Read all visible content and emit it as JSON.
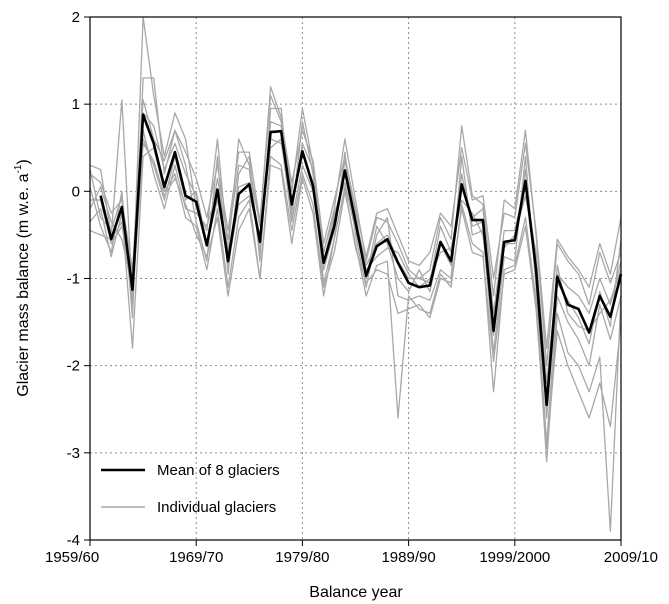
{
  "chart_data": {
    "type": "line",
    "title": "",
    "xlabel": "Balance year",
    "ylabel": "Glacier mass balance (m w.e. a",
    "ylabel_superscript": "-1",
    "ylabel_close": ")",
    "ylim": [
      -4,
      2
    ],
    "xlim": [
      1960,
      2010
    ],
    "grid": true,
    "legend_position": "bottom-left",
    "x_tick_labels": [
      "1959/60",
      "1969/70",
      "1979/80",
      "1989/90",
      "1999/2000",
      "2009/10"
    ],
    "y_tick_labels": [
      "2",
      "1",
      "0",
      "-1",
      "-2",
      "-3",
      "-4"
    ],
    "colors": {
      "mean": "#000000",
      "individual": "#a8a8a8",
      "grid": "#8c8c8c"
    },
    "series": [
      {
        "name": "Mean of 8 glaciers",
        "x": [
          1961,
          1962,
          1963,
          1964,
          1965,
          1966,
          1967,
          1968,
          1969,
          1970,
          1971,
          1972,
          1973,
          1974,
          1975,
          1976,
          1977,
          1978,
          1979,
          1980,
          1981,
          1982,
          1983,
          1984,
          1985,
          1986,
          1987,
          1988,
          1989,
          1990,
          1991,
          1992,
          1993,
          1994,
          1995,
          1996,
          1997,
          1998,
          1999,
          2000,
          2001,
          2002,
          2003,
          2004,
          2005,
          2006,
          2007,
          2008,
          2009,
          2010
        ],
        "values": [
          -0.05,
          -0.55,
          -0.18,
          -1.13,
          0.88,
          0.55,
          0.05,
          0.45,
          -0.05,
          -0.12,
          -0.62,
          0.02,
          -0.8,
          -0.03,
          0.08,
          -0.58,
          0.68,
          0.69,
          -0.15,
          0.46,
          0.06,
          -0.82,
          -0.4,
          0.24,
          -0.35,
          -0.97,
          -0.63,
          -0.55,
          -0.82,
          -1.05,
          -1.1,
          -1.08,
          -0.58,
          -0.8,
          0.08,
          -0.33,
          -0.33,
          -1.6,
          -0.58,
          -0.56,
          0.12,
          -0.9,
          -2.45,
          -0.98,
          -1.3,
          -1.35,
          -1.62,
          -1.2,
          -1.44,
          -0.95
        ]
      },
      {
        "name": "Individual glaciers",
        "members": [
          {
            "x": [
              1960,
              1961,
              1962,
              1963,
              1964,
              1965,
              1966,
              1967,
              1968,
              1969,
              1970,
              1971,
              1972,
              1973,
              1974,
              1975,
              1976,
              1977,
              1978,
              1979,
              1980,
              1981,
              1982,
              1983,
              1984,
              1985,
              1986,
              1987,
              1988,
              1989,
              1990,
              1991,
              1992,
              1993,
              1994,
              1995,
              1996,
              1997,
              1998,
              1999,
              2000,
              2001,
              2002,
              2003,
              2004,
              2005,
              2006,
              2007,
              2008,
              2009,
              2010
            ],
            "values": [
              0.3,
              0.25,
              -0.5,
              1.05,
              -1.2,
              2.0,
              1.1,
              0.4,
              0.9,
              0.6,
              -0.2,
              -0.45,
              0.6,
              -0.7,
              0.6,
              0.3,
              -0.4,
              1.2,
              0.85,
              0.0,
              0.95,
              0.3,
              -0.7,
              -0.2,
              0.6,
              -0.1,
              -0.8,
              -0.3,
              -0.35,
              -0.6,
              -0.9,
              -1.0,
              -0.9,
              -0.3,
              -0.55,
              0.75,
              -0.05,
              -0.15,
              -1.2,
              -0.1,
              -0.2,
              0.7,
              -0.5,
              -2.0,
              -0.6,
              -0.8,
              -0.95,
              -1.3,
              -0.7,
              -1.05,
              -0.7
            ]
          },
          {
            "x": [
              1960,
              1961,
              1962,
              1963,
              1964,
              1965,
              1966,
              1967,
              1968,
              1969,
              1970,
              1971,
              1972,
              1973,
              1974,
              1975,
              1976,
              1977,
              1978,
              1979,
              1980,
              1981,
              1982,
              1983,
              1984,
              1985,
              1986,
              1987,
              1988,
              1989,
              1990,
              1991,
              1992,
              1993,
              1994,
              1995,
              1996,
              1997,
              1998,
              1999,
              2000,
              2001,
              2002,
              2003,
              2004,
              2005,
              2006,
              2007,
              2008,
              2009,
              2010
            ],
            "values": [
              0.05,
              -0.4,
              -0.7,
              0.0,
              -1.45,
              1.3,
              1.3,
              0.2,
              0.7,
              0.3,
              -0.35,
              -0.8,
              0.4,
              -0.95,
              0.2,
              0.4,
              -0.8,
              0.95,
              0.95,
              -0.3,
              0.8,
              0.2,
              -1.05,
              -0.55,
              0.45,
              -0.5,
              -1.1,
              -0.5,
              -0.3,
              -1.2,
              -1.25,
              -1.2,
              -1.25,
              -0.9,
              -1.0,
              0.4,
              -0.5,
              -0.45,
              -1.85,
              -0.75,
              -0.8,
              0.4,
              -1.1,
              -2.9,
              -1.2,
              -1.5,
              -1.7,
              -2.0,
              -1.3,
              -1.7,
              -1.2
            ]
          },
          {
            "x": [
              1960,
              1961,
              1962,
              1963,
              1964,
              1965,
              1966,
              1967,
              1968,
              1969,
              1970,
              1971,
              1972,
              1973,
              1974,
              1975,
              1976,
              1977,
              1978,
              1979,
              1980,
              1981,
              1982,
              1983,
              1984,
              1985,
              1986,
              1987,
              1988,
              1989,
              1990,
              1991,
              1992,
              1993,
              1994,
              1995,
              1996,
              1997,
              1998,
              1999,
              2000,
              2001,
              2002,
              2003,
              2004,
              2005,
              2006,
              2007,
              2008,
              2009,
              2010
            ],
            "values": [
              -0.1,
              -0.1,
              -0.6,
              -0.4,
              -1.0,
              0.6,
              0.3,
              -0.1,
              0.4,
              -0.1,
              0.0,
              -0.6,
              -0.1,
              -0.75,
              0.05,
              0.1,
              -0.55,
              0.6,
              0.55,
              -0.1,
              0.45,
              0.1,
              -0.8,
              -0.3,
              0.2,
              -0.3,
              -0.85,
              -0.6,
              -0.5,
              -0.8,
              -1.0,
              -1.0,
              -1.05,
              -0.4,
              -0.7,
              0.05,
              -0.3,
              -0.2,
              -1.4,
              -0.45,
              -0.45,
              0.1,
              -0.75,
              -2.2,
              -0.95,
              -1.1,
              -1.2,
              -1.4,
              -1.0,
              -1.3,
              -0.8
            ]
          },
          {
            "x": [
              1960,
              1961,
              1962,
              1963,
              1964,
              1965,
              1966,
              1967,
              1968,
              1969,
              1970,
              1971,
              1972,
              1973,
              1974,
              1975,
              1976,
              1977,
              1978,
              1979,
              1980,
              1981,
              1982,
              1983,
              1984,
              1985,
              1986,
              1987,
              1988,
              1989,
              1990,
              1991,
              1992,
              1993,
              1994,
              1995,
              1996,
              1997,
              1998,
              1999,
              2000,
              2001,
              2002,
              2003,
              2004,
              2005,
              2006,
              2007,
              2008,
              2009,
              2010
            ],
            "values": [
              0.25,
              -0.3,
              -0.45,
              -0.05,
              -1.3,
              0.9,
              0.75,
              0.25,
              0.55,
              0.2,
              -0.05,
              -0.6,
              0.15,
              -0.55,
              0.3,
              0.25,
              -0.7,
              0.8,
              0.75,
              -0.2,
              0.55,
              0.25,
              -0.9,
              -0.45,
              0.35,
              -0.25,
              -1.0,
              -0.4,
              -0.6,
              -1.0,
              -1.15,
              -0.9,
              -1.15,
              -0.6,
              -0.85,
              0.2,
              -0.4,
              -0.35,
              -1.65,
              -0.6,
              -0.6,
              0.25,
              -0.95,
              -2.6,
              -1.05,
              -1.25,
              -1.45,
              -1.75,
              -1.15,
              -1.55,
              -0.55
            ]
          },
          {
            "x": [
              1960,
              1961,
              1962,
              1963,
              1964,
              1965,
              1966,
              1967,
              1968,
              1969,
              1970,
              1971,
              1972,
              1973,
              1974,
              1975,
              1976,
              1977,
              1978,
              1979,
              1980,
              1981,
              1982,
              1983,
              1984,
              1985,
              1986,
              1987,
              1988,
              1989,
              1990,
              1991,
              1992,
              1993,
              1994,
              1995,
              1996,
              1997,
              1998,
              1999,
              2000,
              2001,
              2002,
              2003,
              2004,
              2005,
              2006,
              2007,
              2008,
              2009,
              2010
            ],
            "values": [
              -0.2,
              0.05,
              -0.35,
              -0.55,
              -1.1,
              0.7,
              0.2,
              -0.2,
              0.3,
              -0.2,
              -0.25,
              -0.4,
              0.0,
              -0.85,
              -0.15,
              -0.05,
              -0.5,
              0.5,
              0.6,
              -0.35,
              0.3,
              0.0,
              -0.7,
              -0.25,
              0.1,
              -0.45,
              -0.9,
              -0.75,
              -0.65,
              -0.7,
              -0.95,
              -1.1,
              -1.0,
              -0.7,
              -0.65,
              -0.1,
              -0.25,
              -0.5,
              -1.5,
              -0.65,
              -0.5,
              -0.05,
              -0.7,
              -2.4,
              -0.85,
              -1.4,
              -1.55,
              -1.6,
              -1.4,
              -1.25,
              -0.9
            ]
          },
          {
            "x": [
              1960,
              1961,
              1962,
              1963,
              1964,
              1965,
              1966,
              1967,
              1968,
              1969,
              1970,
              1971,
              1972,
              1973,
              1974,
              1975,
              1976,
              1977,
              1978,
              1979,
              1980,
              1981,
              1982,
              1983,
              1984,
              1985,
              1986,
              1987,
              1988,
              1989,
              1990,
              1991,
              1992,
              1993,
              1994,
              1995,
              1996,
              1997,
              1998,
              1999,
              2000,
              2001,
              2002,
              2003,
              2004,
              2005,
              2006,
              2007,
              2008,
              2009,
              2010
            ],
            "values": [
              -0.35,
              -0.2,
              -0.75,
              -0.25,
              -1.8,
              0.4,
              0.5,
              0.0,
              0.2,
              -0.3,
              -0.4,
              -0.9,
              -0.2,
              -1.1,
              -0.3,
              -0.1,
              -1.0,
              0.4,
              0.3,
              -0.45,
              0.2,
              -0.15,
              -1.1,
              -0.7,
              0.0,
              -0.6,
              -1.2,
              -0.85,
              -0.8,
              -2.6,
              -1.2,
              -1.35,
              -1.4,
              -0.95,
              -1.1,
              -0.15,
              -0.6,
              -0.7,
              -2.3,
              -0.9,
              -0.85,
              -0.3,
              -1.25,
              -3.1,
              -1.4,
              -1.85,
              -2.0,
              -2.3,
              -1.9,
              -3.9,
              -1.2
            ]
          },
          {
            "x": [
              1960,
              1961,
              1962,
              1963,
              1964,
              1965,
              1966,
              1967,
              1968,
              1969,
              1970,
              1971,
              1972,
              1973,
              1974,
              1975,
              1976,
              1977,
              1978,
              1979,
              1980,
              1981,
              1982,
              1983,
              1984,
              1985,
              1986,
              1987,
              1988,
              1989,
              1990,
              1991,
              1992,
              1993,
              1994,
              1995,
              1996,
              1997,
              1998,
              1999,
              2000,
              2001,
              2002,
              2003,
              2004,
              2005,
              2006,
              2007,
              2008,
              2009,
              2010
            ],
            "values": [
              0.2,
              0.1,
              -0.25,
              -0.1,
              -0.9,
              1.05,
              0.6,
              0.35,
              0.7,
              0.45,
              0.15,
              -0.3,
              0.3,
              -0.45,
              0.45,
              0.45,
              -0.35,
              1.1,
              0.8,
              0.1,
              0.7,
              0.35,
              -0.6,
              -0.1,
              0.4,
              -0.2,
              -0.75,
              -0.25,
              -0.2,
              -0.5,
              -0.8,
              -0.85,
              -0.7,
              -0.25,
              -0.4,
              0.5,
              -0.1,
              -0.05,
              -1.0,
              -0.25,
              -0.3,
              0.55,
              -0.45,
              -1.8,
              -0.55,
              -0.75,
              -0.9,
              -1.1,
              -0.6,
              -0.95,
              -0.3
            ]
          },
          {
            "x": [
              1960,
              1961,
              1962,
              1963,
              1964,
              1965,
              1966,
              1967,
              1968,
              1969,
              1970,
              1971,
              1972,
              1973,
              1974,
              1975,
              1976,
              1977,
              1978,
              1979,
              1980,
              1981,
              1982,
              1983,
              1984,
              1985,
              1986,
              1987,
              1988,
              1989,
              1990,
              1991,
              1992,
              1993,
              1994,
              1995,
              1996,
              1997,
              1998,
              1999,
              2000,
              2001,
              2002,
              2003,
              2004,
              2005,
              2006,
              2007,
              2008,
              2009,
              2010
            ],
            "values": [
              -0.45,
              -0.5,
              -0.55,
              -0.35,
              -1.25,
              0.55,
              0.35,
              -0.05,
              0.15,
              -0.15,
              -0.5,
              -0.75,
              -0.3,
              -1.2,
              -0.45,
              -0.2,
              -1.0,
              0.3,
              0.25,
              -0.6,
              0.15,
              -0.25,
              -1.2,
              -0.55,
              0.05,
              -0.65,
              -1.05,
              -0.9,
              -0.95,
              -1.4,
              -1.35,
              -1.3,
              -1.45,
              -1.0,
              -1.05,
              -0.2,
              -0.7,
              -0.75,
              -1.95,
              -0.95,
              -0.9,
              -0.4,
              -1.35,
              -2.95,
              -1.6,
              -2.0,
              -2.3,
              -2.6,
              -2.2,
              -2.7,
              -1.5
            ]
          }
        ]
      }
    ]
  }
}
